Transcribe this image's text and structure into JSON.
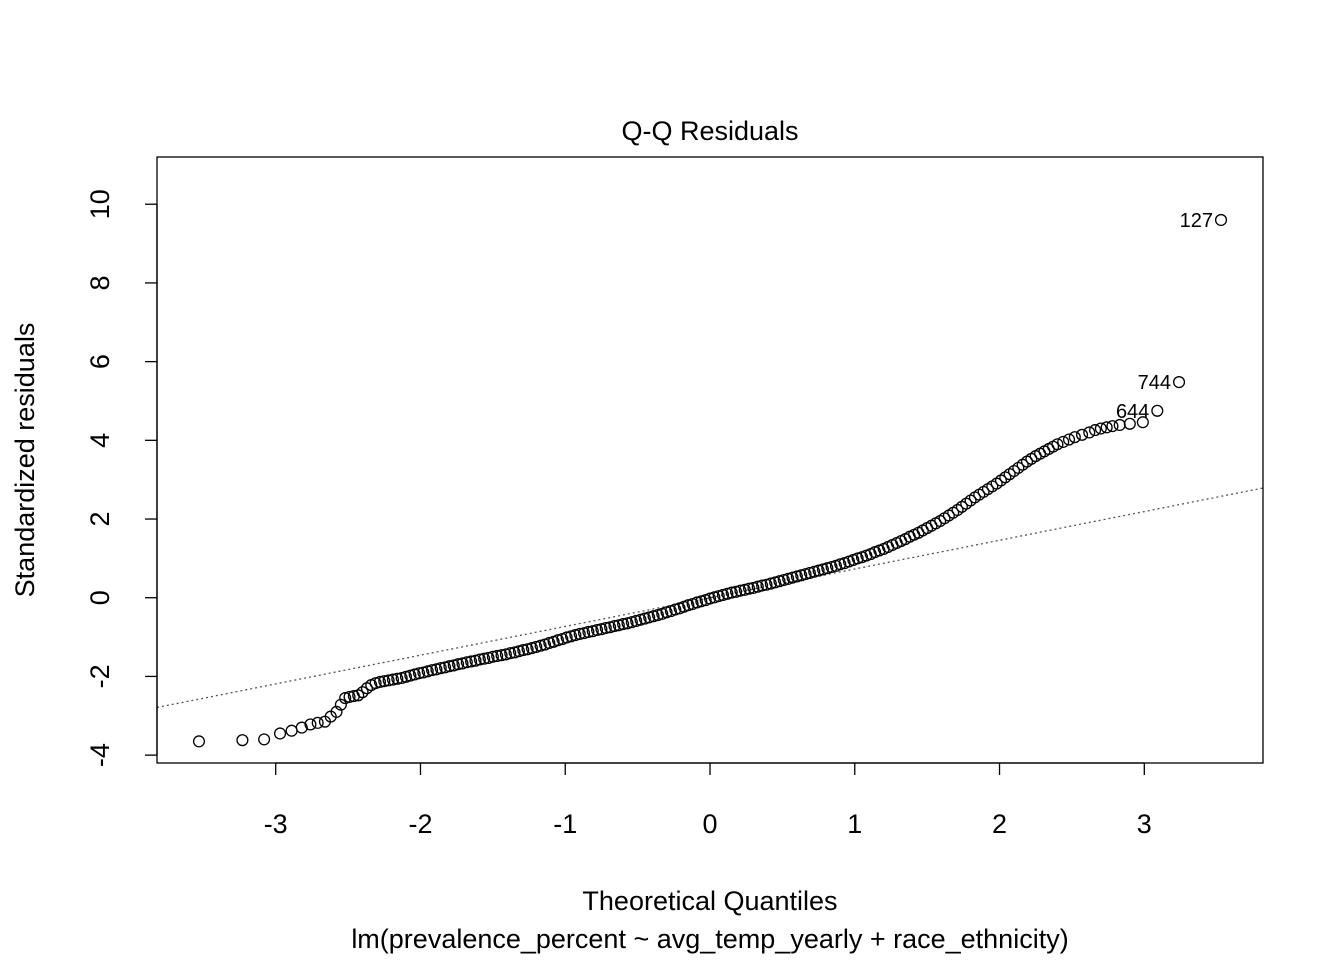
{
  "chart_data": {
    "type": "scatter",
    "title": "Q-Q Residuals",
    "xlabel": "Theoretical Quantiles",
    "subtitle": "lm(prevalence_percent ~ avg_temp_yearly + race_ethnicity)",
    "ylabel": "Standardized residuals",
    "xlim": [
      -3.82,
      3.82
    ],
    "ylim": [
      -4.2,
      11.2
    ],
    "xticks": [
      -3,
      -2,
      -1,
      0,
      1,
      2,
      3
    ],
    "yticks": [
      -4,
      -2,
      0,
      2,
      4,
      6,
      8,
      10
    ],
    "reference_line": {
      "style": "dotted",
      "intercept": 0.0,
      "slope": 0.73
    },
    "labeled_points": [
      {
        "label": "127",
        "x": 3.53,
        "y": 9.6
      },
      {
        "label": "744",
        "x": 3.24,
        "y": 5.48
      },
      {
        "label": "644",
        "x": 3.09,
        "y": 4.75
      }
    ],
    "series": [
      {
        "points": [
          [
            -3.53,
            -3.65
          ],
          [
            -3.23,
            -3.62
          ],
          [
            -3.08,
            -3.6
          ],
          [
            -2.97,
            -3.45
          ],
          [
            -2.89,
            -3.38
          ],
          [
            -2.82,
            -3.3
          ],
          [
            -2.76,
            -3.22
          ],
          [
            -2.71,
            -3.18
          ],
          [
            -2.66,
            -3.15
          ],
          [
            -2.62,
            -3.02
          ],
          [
            -2.58,
            -2.9
          ],
          [
            -2.55,
            -2.72
          ],
          [
            -2.52,
            -2.55
          ],
          [
            -2.49,
            -2.52
          ],
          [
            -2.46,
            -2.5
          ],
          [
            -2.43,
            -2.48
          ],
          [
            -2.4,
            -2.4
          ],
          [
            -2.37,
            -2.3
          ],
          [
            -2.34,
            -2.22
          ],
          [
            -2.31,
            -2.17
          ],
          [
            -2.28,
            -2.14
          ],
          [
            -2.25,
            -2.12
          ],
          [
            -2.22,
            -2.1
          ],
          [
            -2.19,
            -2.08
          ],
          [
            -2.16,
            -2.06
          ],
          [
            -2.13,
            -2.04
          ],
          [
            -2.1,
            -2.01
          ],
          [
            -2.07,
            -1.98
          ],
          [
            -2.04,
            -1.95
          ],
          [
            -2.01,
            -1.92
          ],
          [
            -1.98,
            -1.9
          ],
          [
            -1.95,
            -1.87
          ],
          [
            -1.92,
            -1.84
          ],
          [
            -1.89,
            -1.82
          ],
          [
            -1.86,
            -1.79
          ],
          [
            -1.83,
            -1.77
          ],
          [
            -1.8,
            -1.74
          ],
          [
            -1.77,
            -1.72
          ],
          [
            -1.74,
            -1.69
          ],
          [
            -1.71,
            -1.67
          ],
          [
            -1.68,
            -1.64
          ],
          [
            -1.65,
            -1.62
          ],
          [
            -1.62,
            -1.6
          ],
          [
            -1.59,
            -1.57
          ],
          [
            -1.56,
            -1.55
          ],
          [
            -1.53,
            -1.53
          ],
          [
            -1.5,
            -1.5
          ],
          [
            -1.47,
            -1.48
          ],
          [
            -1.44,
            -1.46
          ],
          [
            -1.41,
            -1.44
          ],
          [
            -1.38,
            -1.41
          ],
          [
            -1.35,
            -1.39
          ],
          [
            -1.32,
            -1.36
          ],
          [
            -1.29,
            -1.33
          ],
          [
            -1.26,
            -1.31
          ],
          [
            -1.23,
            -1.28
          ],
          [
            -1.2,
            -1.25
          ],
          [
            -1.17,
            -1.22
          ],
          [
            -1.14,
            -1.19
          ],
          [
            -1.11,
            -1.15
          ],
          [
            -1.08,
            -1.12
          ],
          [
            -1.05,
            -1.08
          ],
          [
            -1.02,
            -1.05
          ],
          [
            -0.99,
            -1.01
          ],
          [
            -0.96,
            -0.98
          ],
          [
            -0.93,
            -0.95
          ],
          [
            -0.9,
            -0.92
          ],
          [
            -0.87,
            -0.9
          ],
          [
            -0.84,
            -0.87
          ],
          [
            -0.81,
            -0.85
          ],
          [
            -0.78,
            -0.82
          ],
          [
            -0.75,
            -0.8
          ],
          [
            -0.72,
            -0.77
          ],
          [
            -0.69,
            -0.75
          ],
          [
            -0.66,
            -0.72
          ],
          [
            -0.63,
            -0.7
          ],
          [
            -0.6,
            -0.67
          ],
          [
            -0.57,
            -0.65
          ],
          [
            -0.54,
            -0.62
          ],
          [
            -0.51,
            -0.59
          ],
          [
            -0.48,
            -0.56
          ],
          [
            -0.45,
            -0.53
          ],
          [
            -0.42,
            -0.5
          ],
          [
            -0.39,
            -0.47
          ],
          [
            -0.36,
            -0.44
          ],
          [
            -0.33,
            -0.41
          ],
          [
            -0.3,
            -0.37
          ],
          [
            -0.27,
            -0.34
          ],
          [
            -0.24,
            -0.3
          ],
          [
            -0.21,
            -0.27
          ],
          [
            -0.18,
            -0.23
          ],
          [
            -0.15,
            -0.19
          ],
          [
            -0.12,
            -0.16
          ],
          [
            -0.09,
            -0.12
          ],
          [
            -0.06,
            -0.09
          ],
          [
            -0.03,
            -0.06
          ],
          [
            0.0,
            -0.02
          ],
          [
            0.03,
            0.01
          ],
          [
            0.06,
            0.04
          ],
          [
            0.09,
            0.07
          ],
          [
            0.12,
            0.1
          ],
          [
            0.15,
            0.13
          ],
          [
            0.18,
            0.15
          ],
          [
            0.21,
            0.18
          ],
          [
            0.24,
            0.2
          ],
          [
            0.27,
            0.23
          ],
          [
            0.3,
            0.25
          ],
          [
            0.33,
            0.28
          ],
          [
            0.36,
            0.31
          ],
          [
            0.39,
            0.33
          ],
          [
            0.42,
            0.36
          ],
          [
            0.45,
            0.39
          ],
          [
            0.48,
            0.42
          ],
          [
            0.51,
            0.45
          ],
          [
            0.54,
            0.48
          ],
          [
            0.57,
            0.51
          ],
          [
            0.6,
            0.54
          ],
          [
            0.63,
            0.57
          ],
          [
            0.66,
            0.6
          ],
          [
            0.69,
            0.63
          ],
          [
            0.72,
            0.66
          ],
          [
            0.75,
            0.69
          ],
          [
            0.78,
            0.72
          ],
          [
            0.81,
            0.75
          ],
          [
            0.84,
            0.78
          ],
          [
            0.87,
            0.81
          ],
          [
            0.9,
            0.85
          ],
          [
            0.93,
            0.88
          ],
          [
            0.96,
            0.92
          ],
          [
            0.99,
            0.96
          ],
          [
            1.02,
            1.0
          ],
          [
            1.05,
            1.03
          ],
          [
            1.08,
            1.07
          ],
          [
            1.11,
            1.11
          ],
          [
            1.14,
            1.16
          ],
          [
            1.17,
            1.2
          ],
          [
            1.2,
            1.24
          ],
          [
            1.23,
            1.29
          ],
          [
            1.26,
            1.34
          ],
          [
            1.29,
            1.39
          ],
          [
            1.32,
            1.44
          ],
          [
            1.35,
            1.49
          ],
          [
            1.38,
            1.55
          ],
          [
            1.41,
            1.6
          ],
          [
            1.44,
            1.65
          ],
          [
            1.47,
            1.71
          ],
          [
            1.5,
            1.77
          ],
          [
            1.53,
            1.83
          ],
          [
            1.56,
            1.89
          ],
          [
            1.59,
            1.95
          ],
          [
            1.62,
            2.02
          ],
          [
            1.65,
            2.09
          ],
          [
            1.68,
            2.16
          ],
          [
            1.71,
            2.23
          ],
          [
            1.74,
            2.31
          ],
          [
            1.77,
            2.39
          ],
          [
            1.8,
            2.47
          ],
          [
            1.83,
            2.55
          ],
          [
            1.86,
            2.62
          ],
          [
            1.89,
            2.69
          ],
          [
            1.92,
            2.76
          ],
          [
            1.95,
            2.83
          ],
          [
            1.98,
            2.9
          ],
          [
            2.01,
            2.98
          ],
          [
            2.04,
            3.06
          ],
          [
            2.07,
            3.14
          ],
          [
            2.1,
            3.22
          ],
          [
            2.13,
            3.3
          ],
          [
            2.16,
            3.38
          ],
          [
            2.19,
            3.46
          ],
          [
            2.22,
            3.53
          ],
          [
            2.25,
            3.6
          ],
          [
            2.28,
            3.66
          ],
          [
            2.31,
            3.72
          ],
          [
            2.34,
            3.78
          ],
          [
            2.37,
            3.84
          ],
          [
            2.4,
            3.9
          ],
          [
            2.44,
            3.96
          ],
          [
            2.48,
            4.02
          ],
          [
            2.52,
            4.08
          ],
          [
            2.57,
            4.14
          ],
          [
            2.62,
            4.2
          ],
          [
            2.66,
            4.26
          ],
          [
            2.7,
            4.3
          ],
          [
            2.74,
            4.33
          ],
          [
            2.78,
            4.36
          ],
          [
            2.83,
            4.39
          ],
          [
            2.9,
            4.42
          ],
          [
            2.99,
            4.46
          ],
          [
            3.09,
            4.75
          ],
          [
            3.24,
            5.48
          ],
          [
            3.53,
            9.6
          ]
        ]
      }
    ]
  }
}
